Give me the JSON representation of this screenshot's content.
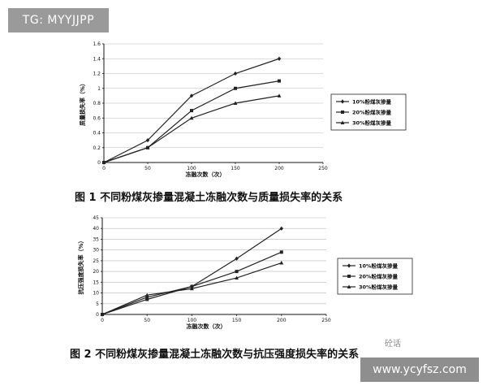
{
  "watermark_top": "TG: MYYJJPP",
  "watermark_bottom": "www.ycyfsz.com",
  "watermark_logo": "砼话",
  "captions": [
    "图 1 不同粉煤灰掺量混凝土冻融次数与质量损失率的关系",
    "图 2 不同粉煤灰掺量混凝土冻融次数与抗压强度损失率的关系"
  ],
  "chart_data": [
    {
      "type": "line",
      "title": "图 1 不同粉煤灰掺量混凝土冻融次数与质量损失率的关系",
      "xlabel": "冻融次数（次）",
      "ylabel": "质量损失率（%）",
      "xlim": [
        0,
        250
      ],
      "ylim": [
        0,
        1.6
      ],
      "xticks": [
        0,
        50,
        100,
        150,
        200,
        250
      ],
      "yticks": [
        0,
        0.2,
        0.4,
        0.6,
        0.8,
        1,
        1.2,
        1.4,
        1.6
      ],
      "ytick_labels": [
        "0",
        "0.2",
        "0.4",
        "0.6",
        "0.8",
        "1",
        "1.2",
        "1.4",
        "1.6"
      ],
      "grid": true,
      "legend_position": "right",
      "x": [
        0,
        50,
        100,
        150,
        200
      ],
      "series": [
        {
          "name": "10%粉煤灰掺量",
          "marker": "diamond",
          "values": [
            0,
            0.3,
            0.9,
            1.2,
            1.4
          ]
        },
        {
          "name": "20%粉煤灰掺量",
          "marker": "square",
          "values": [
            0,
            0.2,
            0.7,
            1.0,
            1.1
          ]
        },
        {
          "name": "30%粉煤灰掺量",
          "marker": "triangle",
          "values": [
            0,
            0.2,
            0.6,
            0.8,
            0.9
          ]
        }
      ]
    },
    {
      "type": "line",
      "title": "图 2 不同粉煤灰掺量混凝土冻融次数与抗压强度损失率的关系",
      "xlabel": "冻融次数（次）",
      "ylabel": "抗压强度损失率（%）",
      "xlim": [
        0,
        250
      ],
      "ylim": [
        0,
        45
      ],
      "xticks": [
        0,
        50,
        100,
        150,
        200,
        250
      ],
      "yticks": [
        0,
        5,
        10,
        15,
        20,
        25,
        30,
        35,
        40,
        45
      ],
      "ytick_labels": [
        "0",
        "5",
        "10",
        "15",
        "20",
        "25",
        "30",
        "35",
        "40",
        "45"
      ],
      "grid": true,
      "legend_position": "right",
      "x": [
        0,
        50,
        100,
        150,
        200
      ],
      "series": [
        {
          "name": "10%粉煤灰掺量",
          "marker": "diamond",
          "values": [
            0,
            8,
            13,
            26,
            40
          ]
        },
        {
          "name": "20%粉煤灰掺量",
          "marker": "square",
          "values": [
            0,
            7,
            13,
            20,
            29
          ]
        },
        {
          "name": "30%粉煤灰掺量",
          "marker": "triangle",
          "values": [
            0,
            9,
            12,
            17,
            24
          ]
        }
      ]
    }
  ]
}
